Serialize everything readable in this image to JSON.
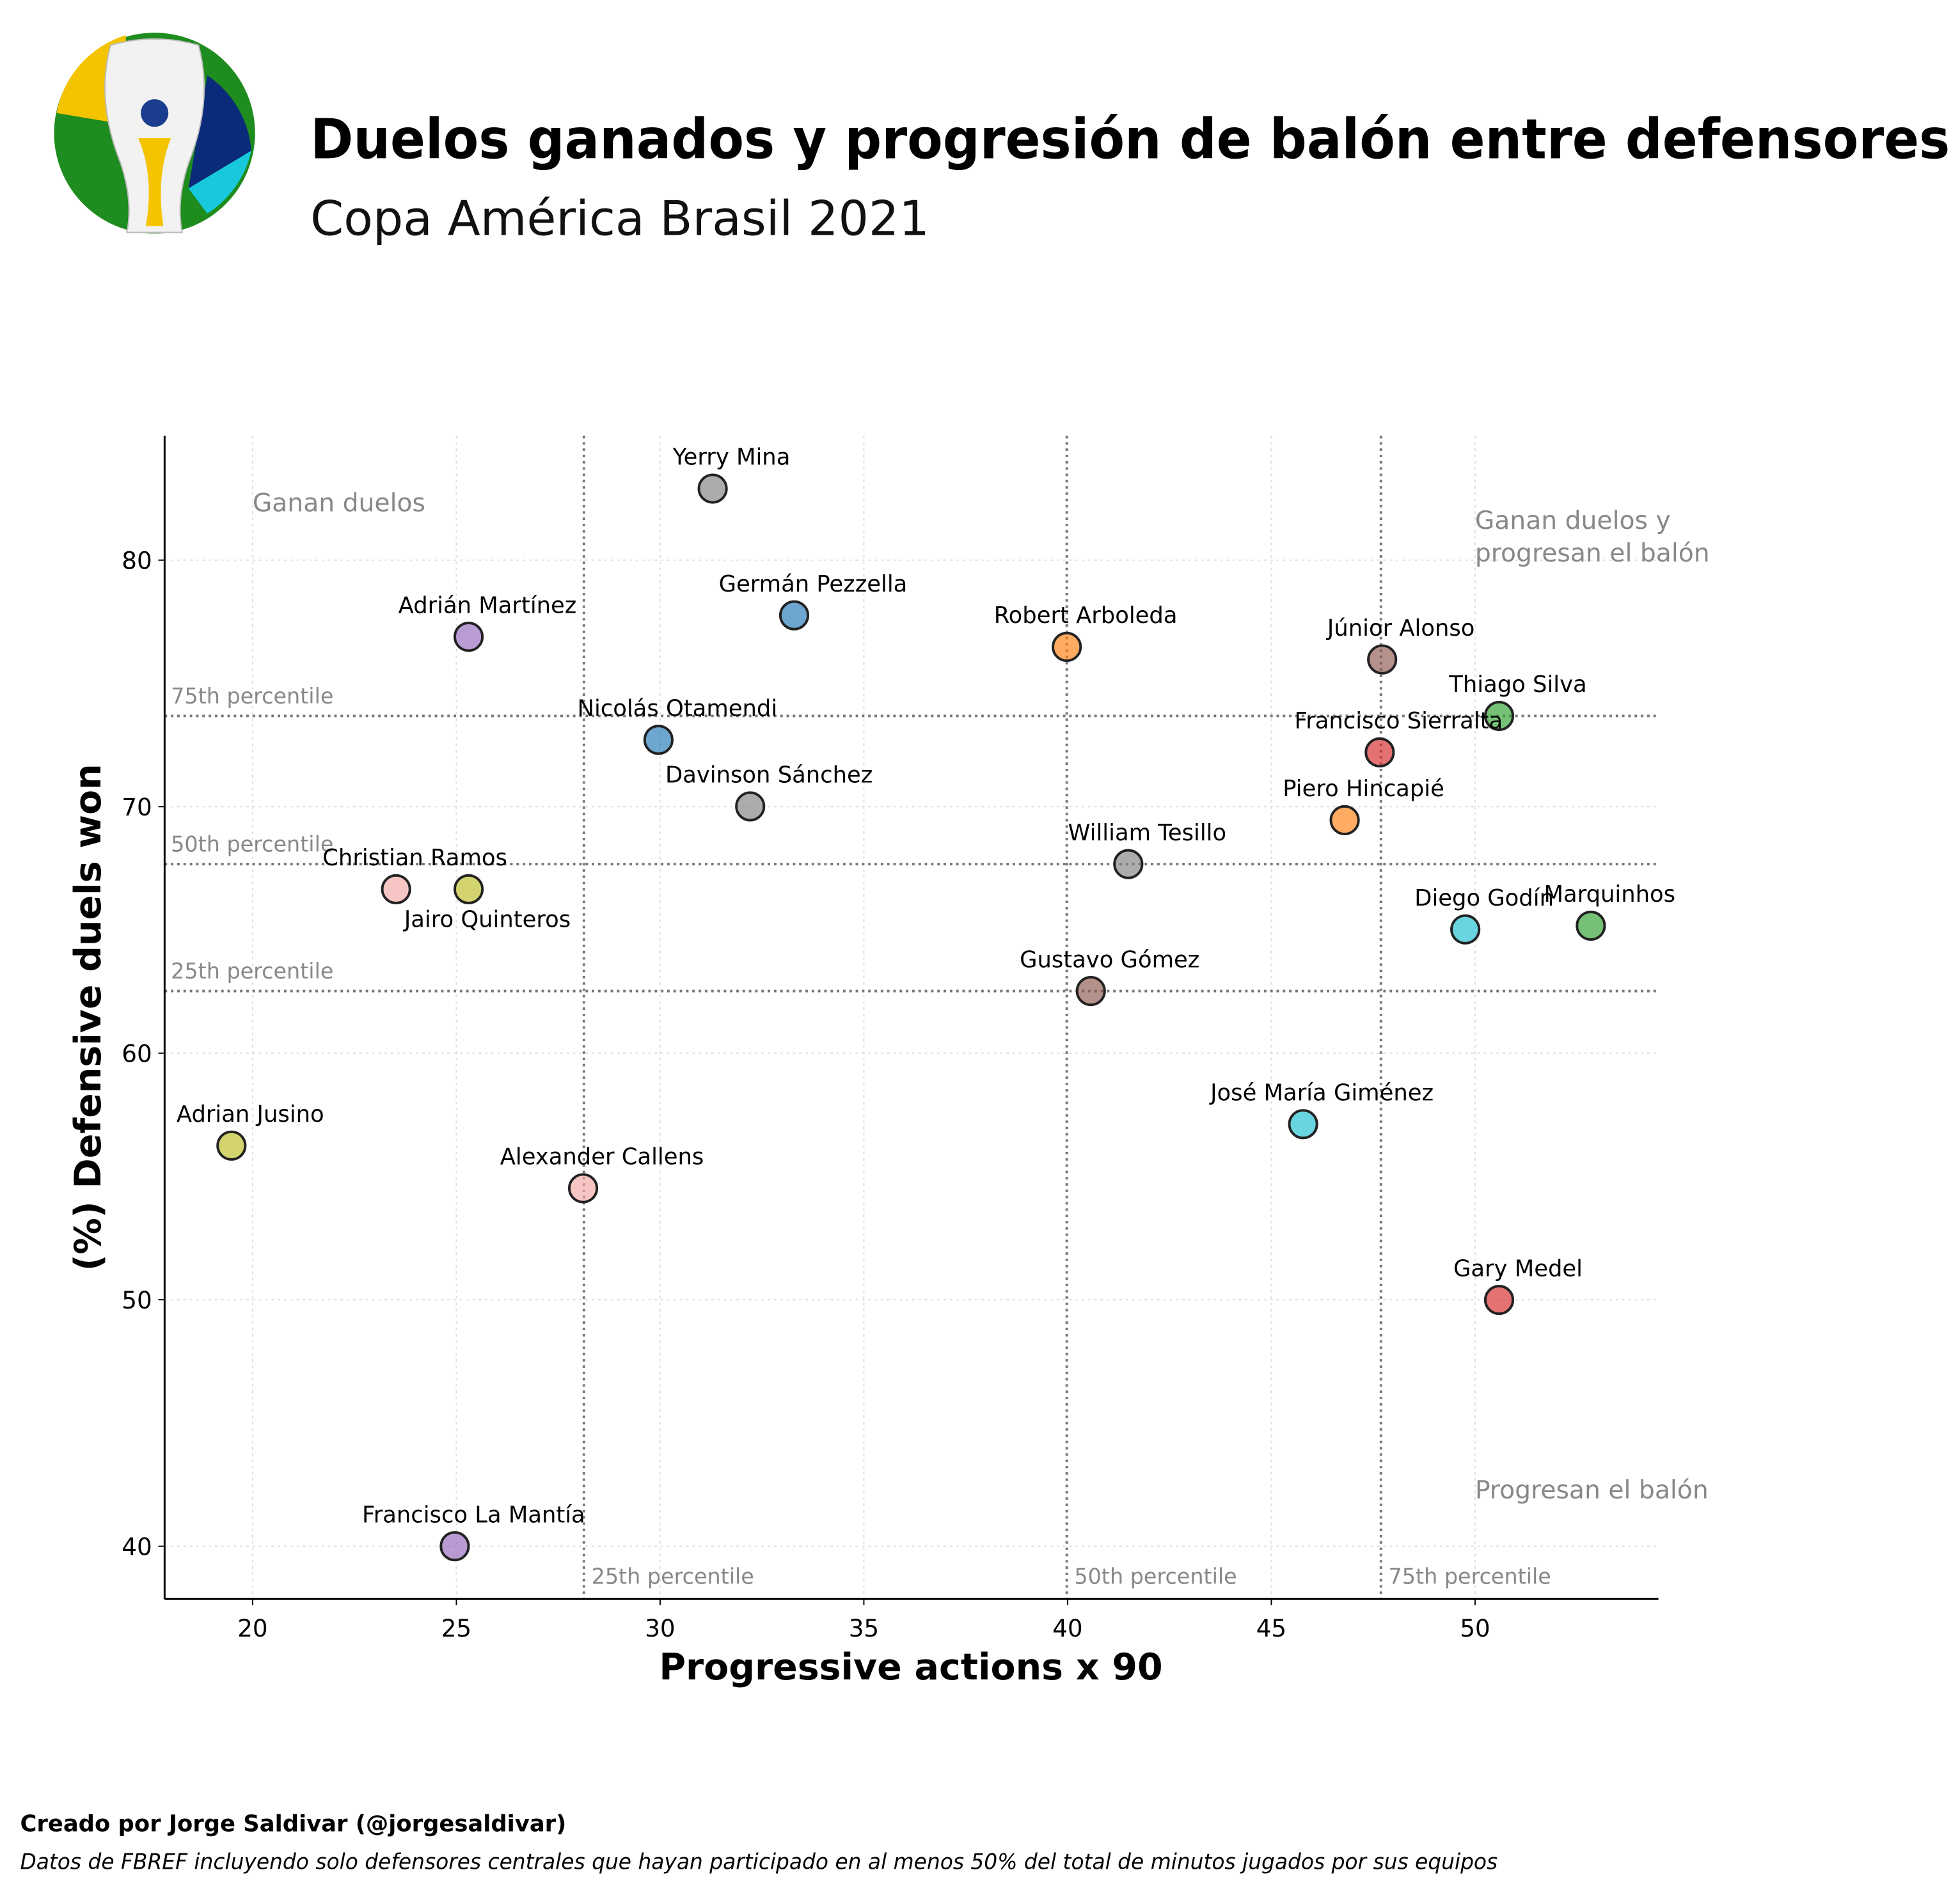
{
  "chart_data": {
    "type": "scatter",
    "title": "Duelos ganados y progresión de balón entre defensores",
    "subtitle": "Copa América Brasil 2021",
    "xlabel": "Progressive actions x 90",
    "ylabel": "(%) Defensive duels won",
    "xlim": [
      17.84,
      54.5
    ],
    "ylim": [
      37.86,
      85.04
    ],
    "xticks": [
      20,
      25,
      30,
      35,
      40,
      45,
      50
    ],
    "yticks": [
      40,
      50,
      60,
      70,
      80
    ],
    "grid": true,
    "series": [
      {
        "name": "Yerry Mina",
        "color": "#7f7f7f",
        "x": [
          31.29
        ],
        "values": [
          82.9
        ]
      },
      {
        "name": "Germán Pezzella",
        "color": "#1f77b4",
        "x": [
          33.29
        ],
        "values": [
          77.76
        ]
      },
      {
        "name": "Adrián Martínez",
        "color": "#9467bd",
        "x": [
          25.3
        ],
        "values": [
          76.89
        ]
      },
      {
        "name": "Robert Arboleda",
        "color": "#ff7f0e",
        "x": [
          39.98
        ],
        "values": [
          76.48
        ]
      },
      {
        "name": "Júnior Alonso",
        "color": "#8c564b",
        "x": [
          47.72
        ],
        "values": [
          75.97
        ]
      },
      {
        "name": "Thiago Silva",
        "color": "#2ca02c",
        "x": [
          50.59
        ],
        "values": [
          73.68
        ]
      },
      {
        "name": "Francisco Sierralta",
        "color": "#d62728",
        "x": [
          47.66
        ],
        "values": [
          72.2
        ]
      },
      {
        "name": "Nicolás Otamendi",
        "color": "#1f77b4",
        "x": [
          29.96
        ],
        "values": [
          72.71
        ]
      },
      {
        "name": "Davinson Sánchez",
        "color": "#7f7f7f",
        "x": [
          32.21
        ],
        "values": [
          70.01
        ]
      },
      {
        "name": "Piero Hincapié",
        "color": "#ff7f0e",
        "x": [
          46.8
        ],
        "values": [
          69.45
        ]
      },
      {
        "name": "William Tesillo",
        "color": "#7f7f7f",
        "x": [
          41.49
        ],
        "values": [
          67.67
        ]
      },
      {
        "name": "Christian Ramos",
        "color": "#f4a6a6",
        "x": [
          23.52
        ],
        "values": [
          66.65
        ]
      },
      {
        "name": "Jairo Quinteros",
        "color": "#bcbd22",
        "x": [
          25.3
        ],
        "values": [
          66.65
        ]
      },
      {
        "name": "Diego Godín",
        "color": "#17becf",
        "x": [
          49.76
        ],
        "values": [
          65.02
        ]
      },
      {
        "name": "Marquinhos",
        "color": "#2ca02c",
        "x": [
          52.84
        ],
        "values": [
          65.17
        ]
      },
      {
        "name": "Gustavo Gómez",
        "color": "#8c564b",
        "x": [
          40.57
        ],
        "values": [
          62.52
        ]
      },
      {
        "name": "José María Giménez",
        "color": "#17becf",
        "x": [
          45.78
        ],
        "values": [
          57.12
        ]
      },
      {
        "name": "Adrian Jusino",
        "color": "#bcbd22",
        "x": [
          19.48
        ],
        "values": [
          56.25
        ]
      },
      {
        "name": "Alexander Callens",
        "color": "#f4a6a6",
        "x": [
          28.11
        ],
        "values": [
          54.52
        ]
      },
      {
        "name": "Gary Medel",
        "color": "#d62728",
        "x": [
          50.59
        ],
        "values": [
          49.99
        ]
      },
      {
        "name": "Francisco La Mantía",
        "color": "#9467bd",
        "x": [
          24.96
        ],
        "values": [
          40.0
        ]
      }
    ],
    "x_percentiles": [
      {
        "value": 28.13,
        "label": "25th percentile"
      },
      {
        "value": 39.98,
        "label": "50th percentile"
      },
      {
        "value": 47.69,
        "label": "75th percentile"
      }
    ],
    "y_percentiles": [
      {
        "value": 73.68,
        "label": "75th percentile"
      },
      {
        "value": 67.67,
        "label": "50th percentile"
      },
      {
        "value": 62.52,
        "label": "25th percentile"
      }
    ],
    "quadrant_labels": [
      [
        "Ganan duelos"
      ],
      [
        "Ganan duelos y",
        "progresan el balón"
      ],
      [
        "Progresan el balón"
      ]
    ],
    "credit": "Creado por Jorge Saldivar (@jorgesaldivar)",
    "note": "Datos de FBREF incluyendo solo defensores centrales que hayan participado en al menos 50% del total de minutos jugados por sus equipos"
  }
}
